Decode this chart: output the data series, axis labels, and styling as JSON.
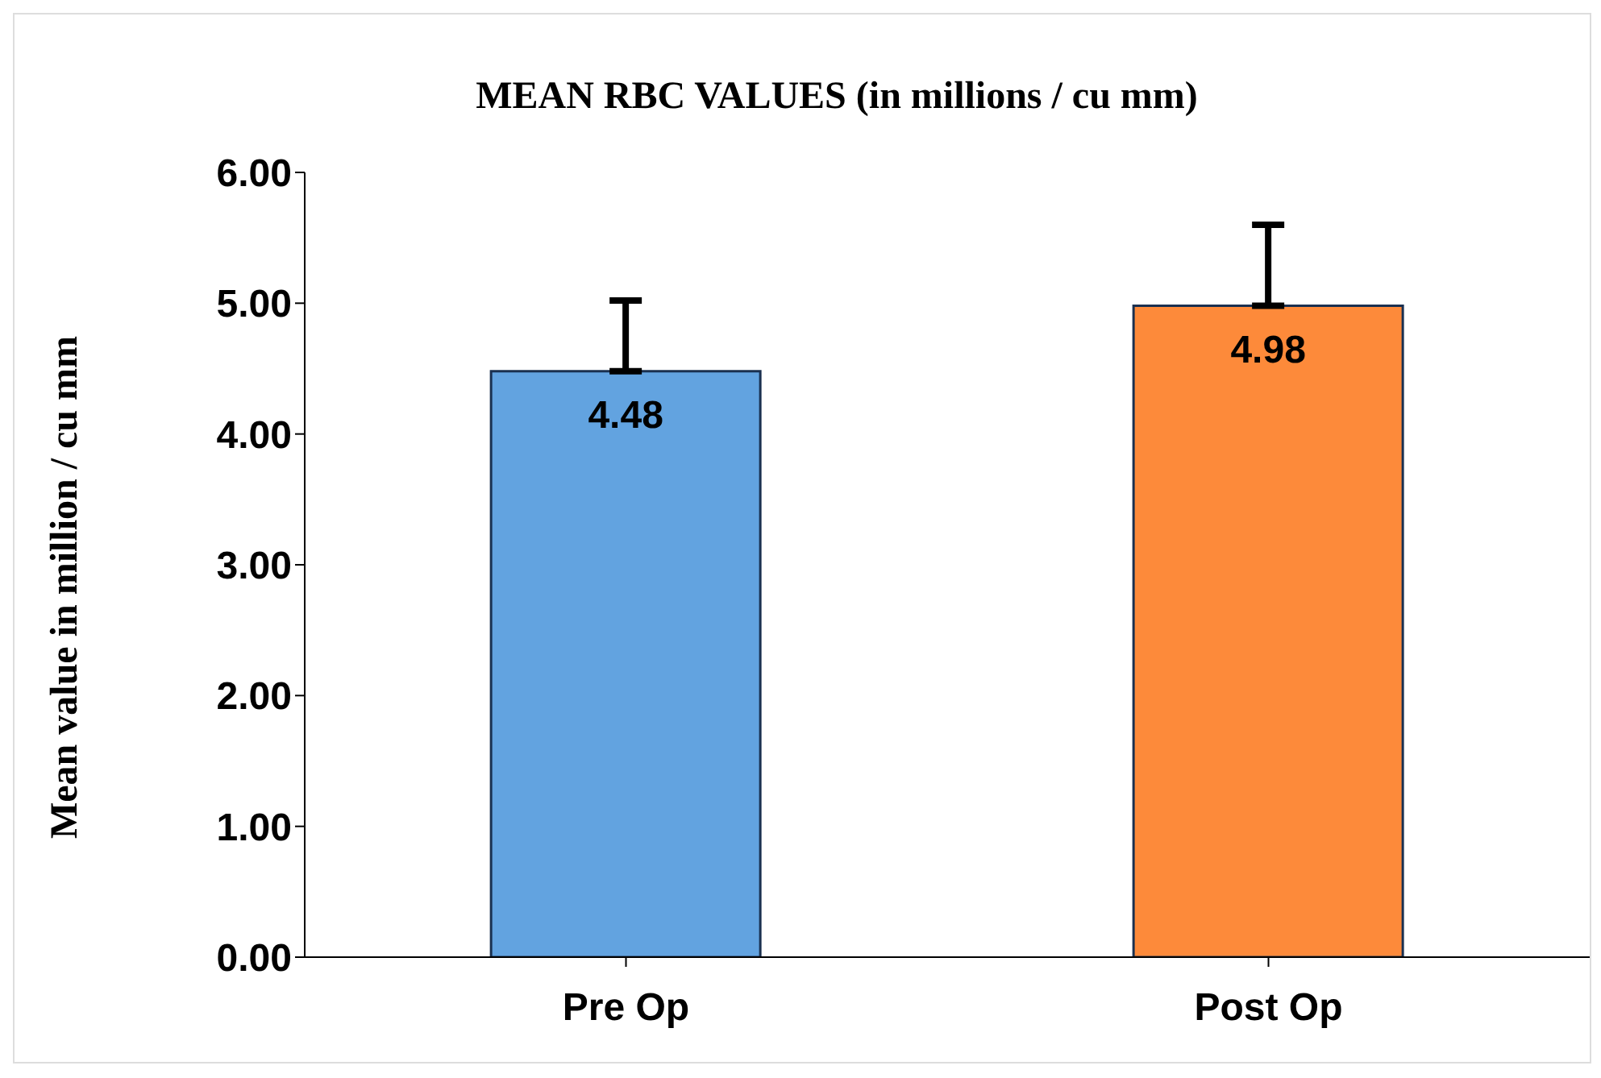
{
  "chart_data": {
    "type": "bar",
    "title": "MEAN RBC VALUES (in millions / cu mm)",
    "ylabel": "Mean value in million / cu mm",
    "categories": [
      "Pre Op",
      "Post Op"
    ],
    "values": [
      4.48,
      4.98
    ],
    "colors": [
      "#62a3e0",
      "#fd8a3a"
    ],
    "errors": [
      [
        4.48,
        5.02
      ],
      [
        4.98,
        5.6
      ]
    ],
    "ylim": [
      0,
      6
    ],
    "yticks": [
      {
        "value": 0,
        "label": "0.00"
      },
      {
        "value": 1,
        "label": "1.00"
      },
      {
        "value": 2,
        "label": "2.00"
      },
      {
        "value": 3,
        "label": "3.00"
      },
      {
        "value": 4,
        "label": "4.00"
      },
      {
        "value": 5,
        "label": "5.00"
      },
      {
        "value": 6,
        "label": "6.00"
      }
    ],
    "grid": false,
    "legend": false,
    "data_labels": true
  }
}
